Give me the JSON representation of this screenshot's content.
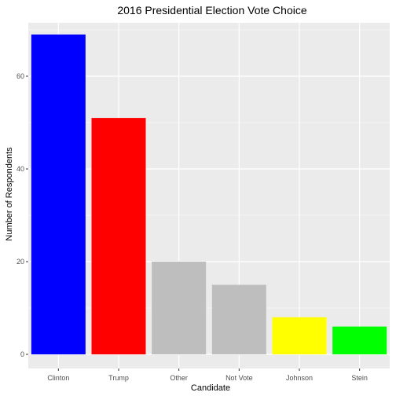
{
  "chart_data": {
    "type": "bar",
    "title": "2016 Presidential Election Vote Choice",
    "xlabel": "Candidate",
    "ylabel": "Number of Respondents",
    "categories": [
      "Clinton",
      "Trump",
      "Other",
      "Not Vote",
      "Johnson",
      "Stein"
    ],
    "values": [
      69,
      51,
      20,
      15,
      8,
      6
    ],
    "colors": [
      "#0000ff",
      "#ff0000",
      "#bebebe",
      "#bebebe",
      "#ffff00",
      "#00ff00"
    ],
    "ylim": [
      0,
      72.5
    ],
    "yticks": [
      0,
      20,
      40,
      60
    ],
    "grid": true,
    "panel_background": "#ebebeb",
    "grid_color": "#ffffff"
  }
}
